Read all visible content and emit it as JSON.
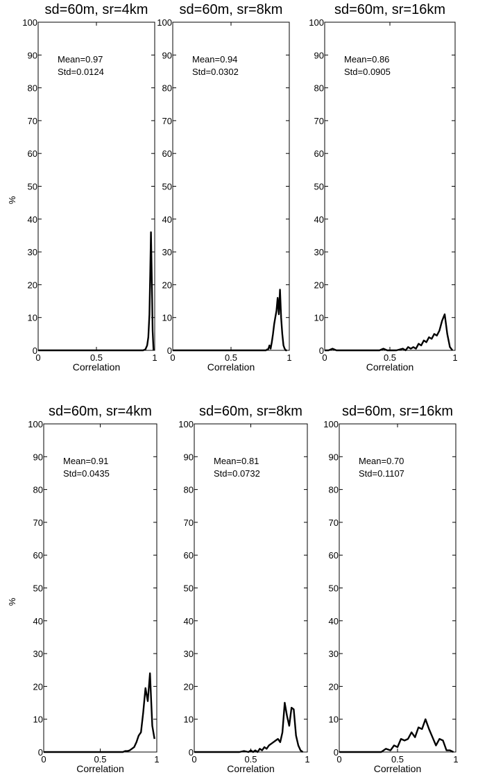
{
  "chart_data": [
    {
      "type": "line",
      "title": "sd=60m, sr=4km",
      "xlabel": "Correlation",
      "ylabel": "%",
      "xlim": [
        0,
        1
      ],
      "ylim": [
        0,
        100
      ],
      "xticks": [
        "0",
        "0.5",
        "1"
      ],
      "yticks": [
        "0",
        "10",
        "20",
        "30",
        "40",
        "50",
        "60",
        "70",
        "80",
        "90",
        "100"
      ],
      "annotation": [
        "Mean=0.97",
        "Std=0.0124"
      ],
      "series": [
        {
          "x": [
            0,
            0.9,
            0.92,
            0.935,
            0.945,
            0.955,
            0.962,
            0.968,
            0.975,
            0.982,
            0.99
          ],
          "y": [
            0,
            0,
            0.3,
            1.5,
            4,
            11,
            24,
            36,
            22,
            6,
            0
          ]
        }
      ]
    },
    {
      "type": "line",
      "title": "sd=60m, sr=8km",
      "xlabel": "Correlation",
      "ylabel": "",
      "xlim": [
        0,
        1
      ],
      "ylim": [
        0,
        100
      ],
      "xticks": [
        "0",
        "0.5",
        "1"
      ],
      "yticks": [
        "0",
        "10",
        "20",
        "30",
        "40",
        "50",
        "60",
        "70",
        "80",
        "90",
        "100"
      ],
      "annotation": [
        "Mean=0.94",
        "Std=0.0302"
      ],
      "series": [
        {
          "x": [
            0,
            0.8,
            0.81,
            0.82,
            0.83,
            0.84,
            0.85,
            0.86,
            0.87,
            0.88,
            0.89,
            0.9,
            0.91,
            0.92,
            0.93,
            0.94,
            0.95,
            0.96,
            0.97,
            0.98
          ],
          "y": [
            0,
            0,
            0.3,
            0.4,
            1.5,
            0.5,
            2.5,
            5,
            8,
            10,
            12,
            16,
            11,
            18.5,
            10,
            5,
            1.5,
            0.5,
            0,
            0
          ]
        }
      ]
    },
    {
      "type": "line",
      "title": "sd=60m, sr=16km",
      "xlabel": "Correlation",
      "ylabel": "",
      "xlim": [
        0,
        1
      ],
      "ylim": [
        0,
        100
      ],
      "xticks": [
        "0",
        "0.5",
        "1"
      ],
      "yticks": [
        "0",
        "10",
        "20",
        "30",
        "40",
        "50",
        "60",
        "70",
        "80",
        "90",
        "100"
      ],
      "annotation": [
        "Mean=0.86",
        "Std=0.0905"
      ],
      "series": [
        {
          "x": [
            0,
            0.03,
            0.06,
            0.09,
            0.2,
            0.42,
            0.45,
            0.48,
            0.55,
            0.6,
            0.62,
            0.64,
            0.66,
            0.68,
            0.7,
            0.72,
            0.74,
            0.76,
            0.78,
            0.8,
            0.82,
            0.84,
            0.86,
            0.88,
            0.9,
            0.92,
            0.94,
            0.96,
            0.98
          ],
          "y": [
            0,
            0,
            0.5,
            0,
            0,
            0,
            0.5,
            0,
            0,
            0.5,
            0,
            1,
            0.5,
            1,
            0.5,
            2,
            1.5,
            3,
            2.5,
            4,
            3.5,
            5,
            4.5,
            6,
            9,
            11,
            5,
            1,
            0
          ]
        }
      ]
    },
    {
      "type": "line",
      "title": "sd=60m, sr=4km",
      "xlabel": "Correlation",
      "ylabel": "%",
      "xlim": [
        0,
        1
      ],
      "ylim": [
        0,
        100
      ],
      "xticks": [
        "0",
        "0.5",
        "1"
      ],
      "yticks": [
        "0",
        "10",
        "20",
        "30",
        "40",
        "50",
        "60",
        "70",
        "80",
        "90",
        "100"
      ],
      "annotation": [
        "Mean=0.91",
        "Std=0.0435"
      ],
      "series": [
        {
          "x": [
            0,
            0.7,
            0.72,
            0.74,
            0.76,
            0.78,
            0.8,
            0.82,
            0.84,
            0.86,
            0.88,
            0.9,
            0.92,
            0.94,
            0.96,
            0.98
          ],
          "y": [
            0,
            0,
            0.3,
            0.3,
            0.5,
            1,
            1.5,
            3,
            5,
            6,
            12,
            19.5,
            15.5,
            24,
            8,
            4
          ]
        }
      ]
    },
    {
      "type": "line",
      "title": "sd=60m, sr=8km",
      "xlabel": "Correlation",
      "ylabel": "",
      "xlim": [
        0,
        1
      ],
      "ylim": [
        0,
        100
      ],
      "xticks": [
        "0",
        "0.5",
        "1"
      ],
      "yticks": [
        "0",
        "10",
        "20",
        "30",
        "40",
        "50",
        "60",
        "70",
        "80",
        "90",
        "100"
      ],
      "annotation": [
        "Mean=0.81",
        "Std=0.0732"
      ],
      "series": [
        {
          "x": [
            0,
            0.4,
            0.44,
            0.48,
            0.5,
            0.52,
            0.54,
            0.56,
            0.58,
            0.6,
            0.62,
            0.64,
            0.66,
            0.68,
            0.7,
            0.72,
            0.74,
            0.76,
            0.78,
            0.8,
            0.82,
            0.84,
            0.86,
            0.88,
            0.9,
            0.92,
            0.94,
            0.96
          ],
          "y": [
            0,
            0,
            0.3,
            0,
            0.5,
            0,
            0.5,
            0,
            1,
            0.5,
            1.5,
            1,
            2,
            2.5,
            3,
            3.5,
            4,
            3,
            6,
            15,
            11,
            8,
            13.5,
            13,
            5,
            2,
            0.5,
            0
          ]
        }
      ]
    },
    {
      "type": "line",
      "title": "sd=60m, sr=16km",
      "xlabel": "Correlation",
      "ylabel": "",
      "xlim": [
        0,
        1
      ],
      "ylim": [
        0,
        100
      ],
      "xticks": [
        "0",
        "0.5",
        "1"
      ],
      "yticks": [
        "0",
        "10",
        "20",
        "30",
        "40",
        "50",
        "60",
        "70",
        "80",
        "90",
        "100"
      ],
      "annotation": [
        "Mean=0.70",
        "Std=0.1107"
      ],
      "series": [
        {
          "x": [
            0,
            0.36,
            0.4,
            0.44,
            0.47,
            0.5,
            0.53,
            0.56,
            0.59,
            0.62,
            0.65,
            0.68,
            0.71,
            0.74,
            0.77,
            0.8,
            0.83,
            0.86,
            0.89,
            0.92,
            0.95,
            0.98
          ],
          "y": [
            0,
            0,
            1,
            0.5,
            2,
            1.5,
            4,
            3.5,
            4,
            6,
            4.5,
            7.5,
            7,
            10,
            7,
            4.5,
            2,
            4,
            3.5,
            0.5,
            0.5,
            0
          ]
        }
      ]
    }
  ]
}
